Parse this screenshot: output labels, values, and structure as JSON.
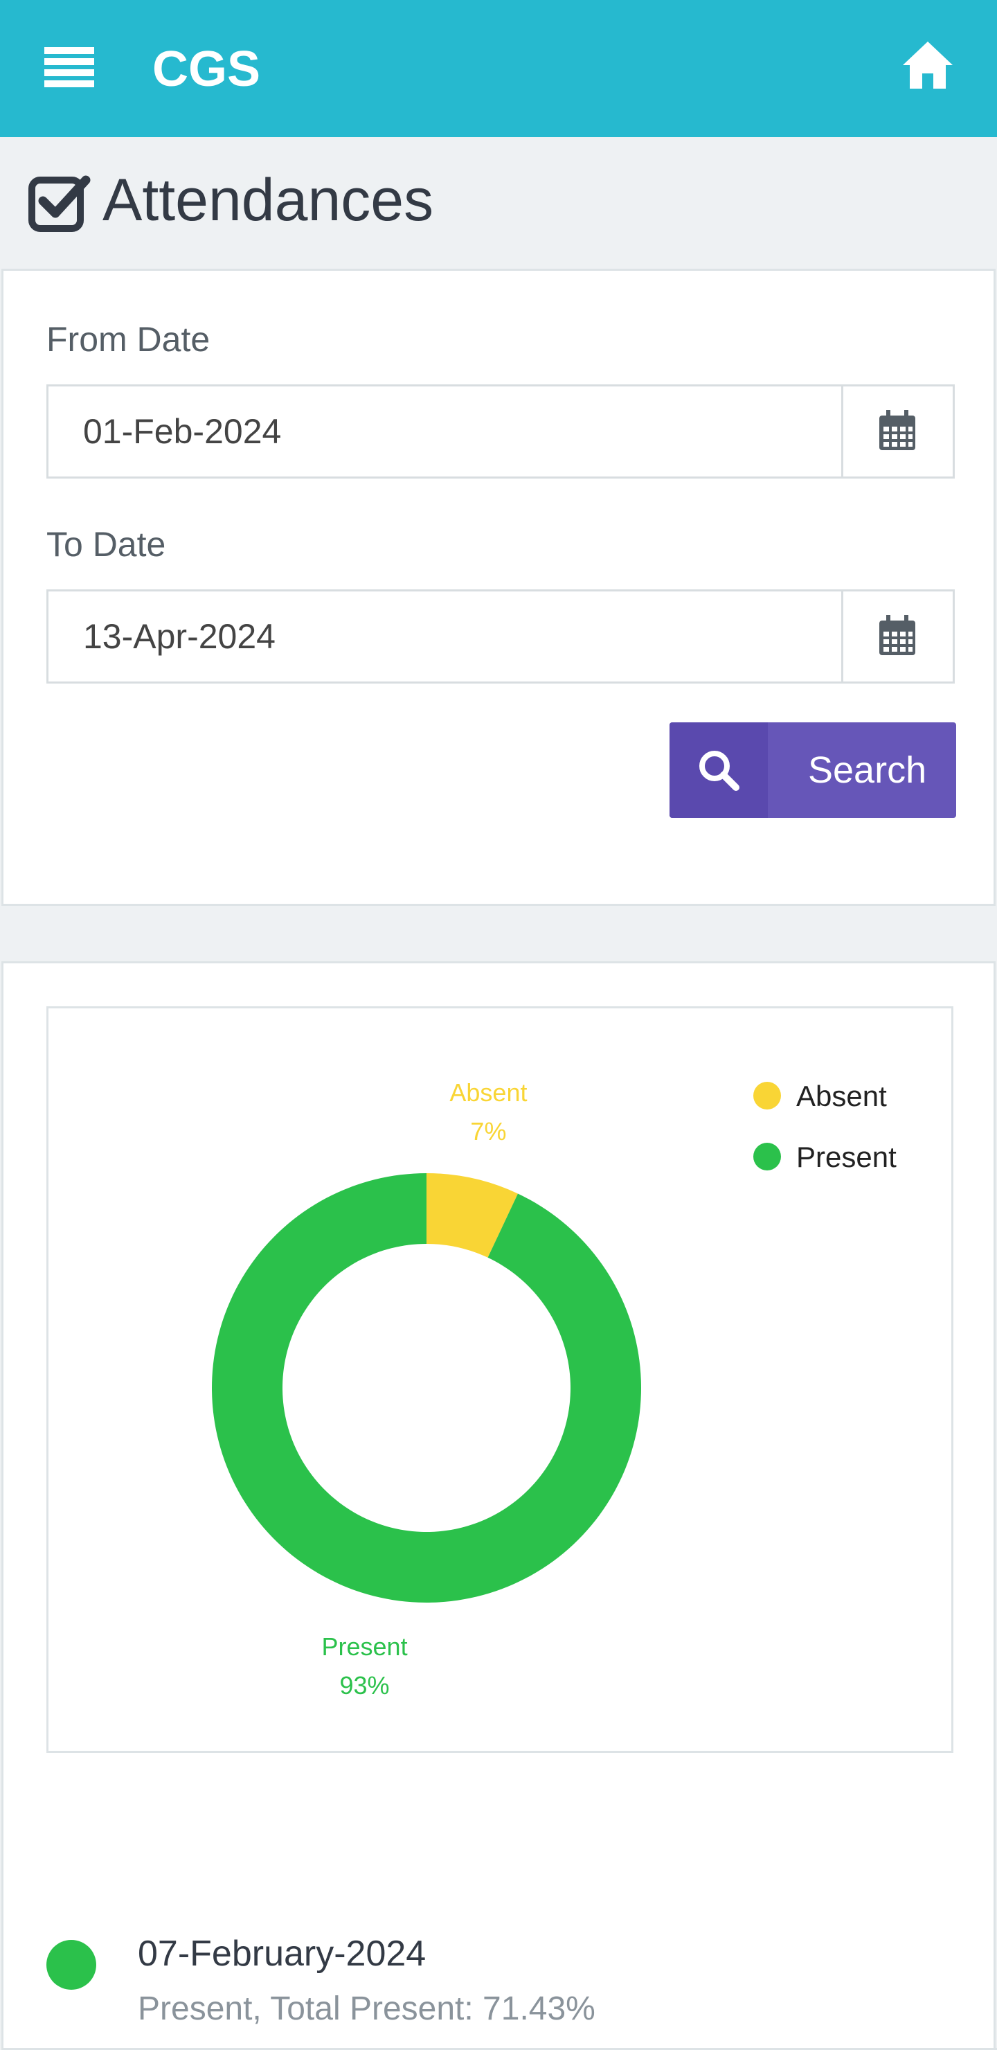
{
  "app": {
    "title": "CGS"
  },
  "icons": {
    "menu": "hamburger-menu-icon",
    "home": "home-icon",
    "page": "checkbox-checked-icon",
    "calendar": "calendar-icon",
    "search": "search-icon"
  },
  "page": {
    "title": "Attendances"
  },
  "filters": {
    "from_label": "From Date",
    "from_value": "01-Feb-2024",
    "to_label": "To Date",
    "to_value": "13-Apr-2024",
    "search_label": "Search"
  },
  "colors": {
    "topbar": "#26b9cf",
    "button": "#6656b8",
    "absent": "#f9d535",
    "present": "#2bc14b"
  },
  "chart_data": {
    "type": "pie",
    "style": "donut",
    "categories": [
      "Absent",
      "Present"
    ],
    "values": [
      7,
      93
    ],
    "labels": [
      "7%",
      "93%"
    ],
    "colors": [
      "#f9d535",
      "#2bc14b"
    ],
    "legend": [
      "Absent",
      "Present"
    ],
    "legend_position": "top-right"
  },
  "entries": [
    {
      "date": "07-February-2024",
      "detail": "Present, Total Present: 71.43%",
      "status_color": "#2bc14b"
    }
  ]
}
